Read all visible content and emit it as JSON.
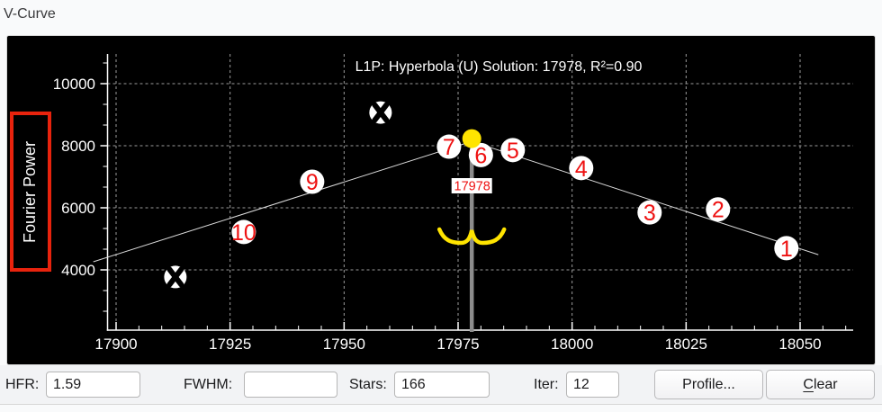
{
  "page": {
    "title": "V-Curve"
  },
  "chart": {
    "y_axis_label": "Fourier Power",
    "title": "L1P: Hyperbola (U) Solution: 17978, R²=0.90"
  },
  "chart_data": {
    "type": "scatter",
    "title": "L1P: Hyperbola (U) Solution: 17978, R²=0.90",
    "xlabel": "",
    "ylabel": "Fourier Power",
    "x_ticks": [
      17900,
      17925,
      17950,
      17975,
      18000,
      18025,
      18050
    ],
    "y_ticks": [
      4000,
      6000,
      8000,
      10000
    ],
    "xlim": [
      17898,
      18060
    ],
    "ylim": [
      2050,
      11000
    ],
    "grid": true,
    "solution": 17978,
    "r_squared": 0.9,
    "solution_label": "17978",
    "points": [
      {
        "label": "1",
        "x": 18047,
        "y": 4700
      },
      {
        "label": "2",
        "x": 18032,
        "y": 5950
      },
      {
        "label": "3",
        "x": 18017,
        "y": 5850
      },
      {
        "label": "4",
        "x": 18002,
        "y": 7280
      },
      {
        "label": "5",
        "x": 17987,
        "y": 7860
      },
      {
        "label": "6",
        "x": 17980,
        "y": 7700
      },
      {
        "label": "7",
        "x": 17973,
        "y": 7970
      },
      {
        "label": "9",
        "x": 17943,
        "y": 6840
      },
      {
        "label": "10",
        "x": 17928,
        "y": 5220
      }
    ],
    "rejected_points": [
      {
        "x": 17958,
        "y": 9070
      },
      {
        "x": 17913,
        "y": 3770
      }
    ],
    "current_focus_point": {
      "x": 17978,
      "y": 8230
    },
    "fit_lines": [
      [
        [
          17895,
          4260
        ],
        [
          17978,
          8140
        ]
      ],
      [
        [
          17978,
          8140
        ],
        [
          18054,
          4490
        ]
      ]
    ],
    "colors": {
      "background": "#000000",
      "axis": "#ffffff",
      "grid": "#9b9b9b",
      "marker_fill": "#ffffff",
      "marker_number": "#ee1111",
      "rejected_x": "#000000",
      "focus_dot": "#ffe400",
      "brace": "#ffe400",
      "solution_line": "#8c8c8c",
      "solution_label_bg": "#ffffff",
      "solution_label_text": "#ee1111",
      "fit_line": "#dddddd",
      "ylabel_box_border": "#e8230d"
    }
  },
  "controls": {
    "hfr": {
      "label": "HFR:",
      "value": "1.59"
    },
    "fwhm": {
      "label": "FWHM:",
      "value": ""
    },
    "stars": {
      "label": "Stars:",
      "value": "166"
    },
    "iter": {
      "label": "Iter:",
      "value": "12"
    },
    "profile_button": "Profile...",
    "clear_button": {
      "accel": "C",
      "rest": "lear"
    }
  }
}
